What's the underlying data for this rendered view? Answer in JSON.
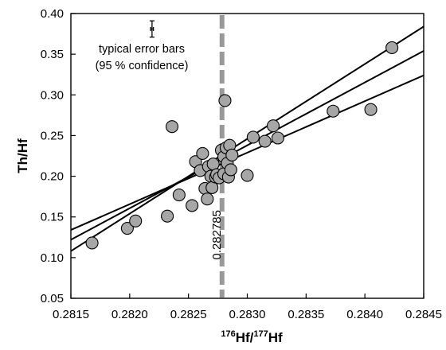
{
  "chart_data": {
    "type": "scatter",
    "xlabel": "176Hf/177Hf",
    "xlabel_parts": {
      "sup1": "176",
      "base1": "Hf/",
      "sup2": "177",
      "base2": "Hf"
    },
    "ylabel": "Th/Hf",
    "xlim": [
      0.2815,
      0.2845
    ],
    "ylim": [
      0.05,
      0.4
    ],
    "x_ticks": [
      "0.2815",
      "0.2820",
      "0.2825",
      "0.2830",
      "0.2835",
      "0.2840",
      "0.2845"
    ],
    "y_ticks": [
      "0.05",
      "0.10",
      "0.15",
      "0.20",
      "0.25",
      "0.30",
      "0.35",
      "0.40"
    ],
    "grid": false,
    "points": [
      {
        "x": 0.28168,
        "y": 0.118
      },
      {
        "x": 0.28198,
        "y": 0.136
      },
      {
        "x": 0.28205,
        "y": 0.145
      },
      {
        "x": 0.28232,
        "y": 0.151
      },
      {
        "x": 0.28236,
        "y": 0.261
      },
      {
        "x": 0.28242,
        "y": 0.177
      },
      {
        "x": 0.28253,
        "y": 0.164
      },
      {
        "x": 0.28256,
        "y": 0.218
      },
      {
        "x": 0.2826,
        "y": 0.207
      },
      {
        "x": 0.28262,
        "y": 0.228
      },
      {
        "x": 0.28264,
        "y": 0.185
      },
      {
        "x": 0.28266,
        "y": 0.172
      },
      {
        "x": 0.28267,
        "y": 0.212
      },
      {
        "x": 0.28269,
        "y": 0.2
      },
      {
        "x": 0.2827,
        "y": 0.186
      },
      {
        "x": 0.28271,
        "y": 0.215
      },
      {
        "x": 0.28273,
        "y": 0.199
      },
      {
        "x": 0.28274,
        "y": 0.202
      },
      {
        "x": 0.28276,
        "y": 0.198
      },
      {
        "x": 0.28278,
        "y": 0.232
      },
      {
        "x": 0.2828,
        "y": 0.224
      },
      {
        "x": 0.2828,
        "y": 0.203
      },
      {
        "x": 0.28281,
        "y": 0.293
      },
      {
        "x": 0.28282,
        "y": 0.235
      },
      {
        "x": 0.28283,
        "y": 0.216
      },
      {
        "x": 0.28284,
        "y": 0.199
      },
      {
        "x": 0.28285,
        "y": 0.238
      },
      {
        "x": 0.28286,
        "y": 0.208
      },
      {
        "x": 0.28287,
        "y": 0.226
      },
      {
        "x": 0.283,
        "y": 0.201
      },
      {
        "x": 0.28305,
        "y": 0.248
      },
      {
        "x": 0.28315,
        "y": 0.243
      },
      {
        "x": 0.28322,
        "y": 0.262
      },
      {
        "x": 0.28326,
        "y": 0.247
      },
      {
        "x": 0.28373,
        "y": 0.28
      },
      {
        "x": 0.28405,
        "y": 0.282
      },
      {
        "x": 0.28423,
        "y": 0.358
      }
    ],
    "regression_lines": [
      {
        "x": [
          0.2815,
          0.2845
        ],
        "y": [
          0.108,
          0.384
        ]
      },
      {
        "x": [
          0.2815,
          0.2845
        ],
        "y": [
          0.122,
          0.354
        ]
      },
      {
        "x": [
          0.2815,
          0.2845
        ],
        "y": [
          0.134,
          0.324
        ]
      }
    ],
    "reference_line": {
      "x": 0.282785,
      "label": "0.282785",
      "color": "#999999",
      "style": "dashed"
    },
    "error_bar": {
      "x": 0.28219,
      "y": 0.381,
      "xerr": 1.2e-05,
      "yerr": 0.01
    },
    "annotation": {
      "line1": "typical error bars",
      "line2": "(95 % confidence)"
    },
    "marker_fill": "#a6a6a6",
    "marker_edge": "#000000",
    "line_color": "#000000"
  }
}
